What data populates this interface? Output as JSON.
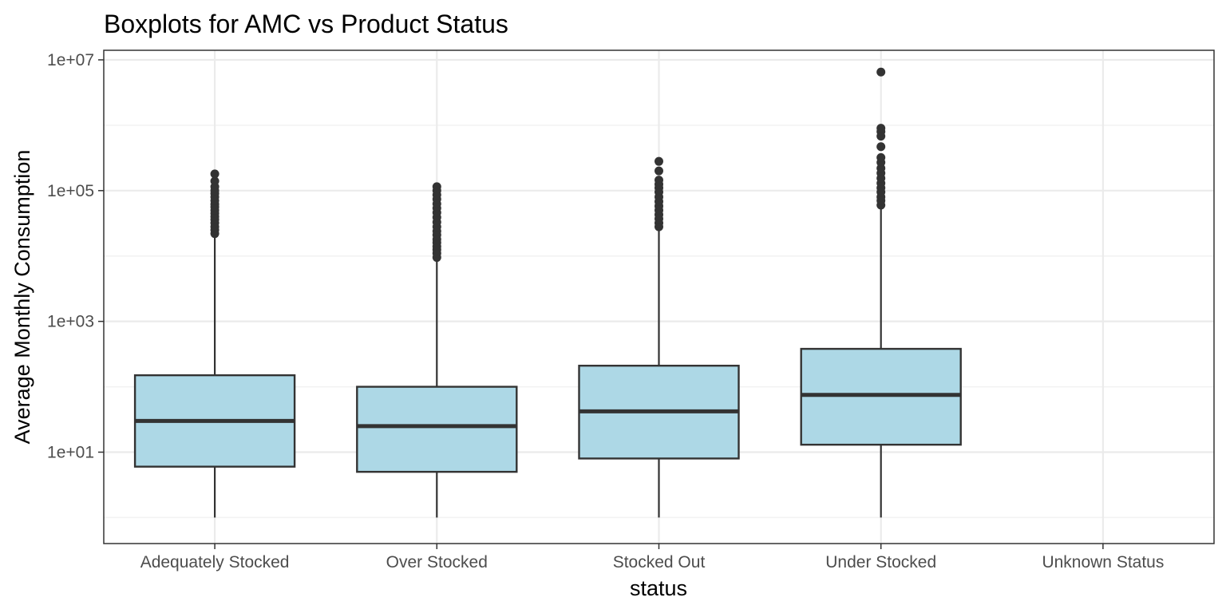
{
  "chart_data": {
    "type": "boxplot",
    "title": "Boxplots for AMC vs Product Status",
    "xlabel": "status",
    "ylabel": "Average Monthly Consumption",
    "y_scale": "log10",
    "ylim": [
      0.4,
      14000000
    ],
    "y_ticks": [
      10,
      1000,
      100000,
      10000000
    ],
    "y_tick_labels": [
      "1e+01",
      "1e+03",
      "1e+05",
      "1e+07"
    ],
    "categories": [
      "Adequately Stocked",
      "Over Stocked",
      "Stocked Out",
      "Under Stocked",
      "Unknown Status"
    ],
    "fill_color": "#add8e6",
    "box_stroke_color": "#333333",
    "grid": true,
    "legend": "none",
    "boxes": [
      {
        "category": "Adequately Stocked",
        "whisker_low": 1,
        "q1": 6,
        "median": 30,
        "q3": 150,
        "whisker_high": 20000,
        "outliers": [
          22000,
          25000,
          28000,
          32000,
          36000,
          40000,
          45000,
          50000,
          56000,
          62000,
          70000,
          80000,
          90000,
          100000,
          115000,
          140000,
          180000
        ]
      },
      {
        "category": "Over Stocked",
        "whisker_low": 1,
        "q1": 5,
        "median": 25,
        "q3": 100,
        "whisker_high": 8500,
        "outliers": [
          9500,
          11000,
          12500,
          14000,
          16000,
          18000,
          21000,
          24000,
          28000,
          33000,
          39000,
          46000,
          54000,
          63000,
          74000,
          86000,
          100000,
          115000
        ]
      },
      {
        "category": "Stocked Out",
        "whisker_low": 1,
        "q1": 8,
        "median": 42,
        "q3": 210,
        "whisker_high": 25000,
        "outliers": [
          28000,
          32000,
          37000,
          43000,
          50000,
          58000,
          68000,
          80000,
          95000,
          110000,
          125000,
          145000,
          200000,
          280000
        ]
      },
      {
        "category": "Under Stocked",
        "whisker_low": 1,
        "q1": 13,
        "median": 75,
        "q3": 380,
        "whisker_high": 55000,
        "outliers": [
          60000,
          70000,
          80000,
          95000,
          110000,
          130000,
          155000,
          185000,
          220000,
          270000,
          320000,
          470000,
          680000,
          800000,
          900000,
          6500000
        ]
      }
    ]
  }
}
